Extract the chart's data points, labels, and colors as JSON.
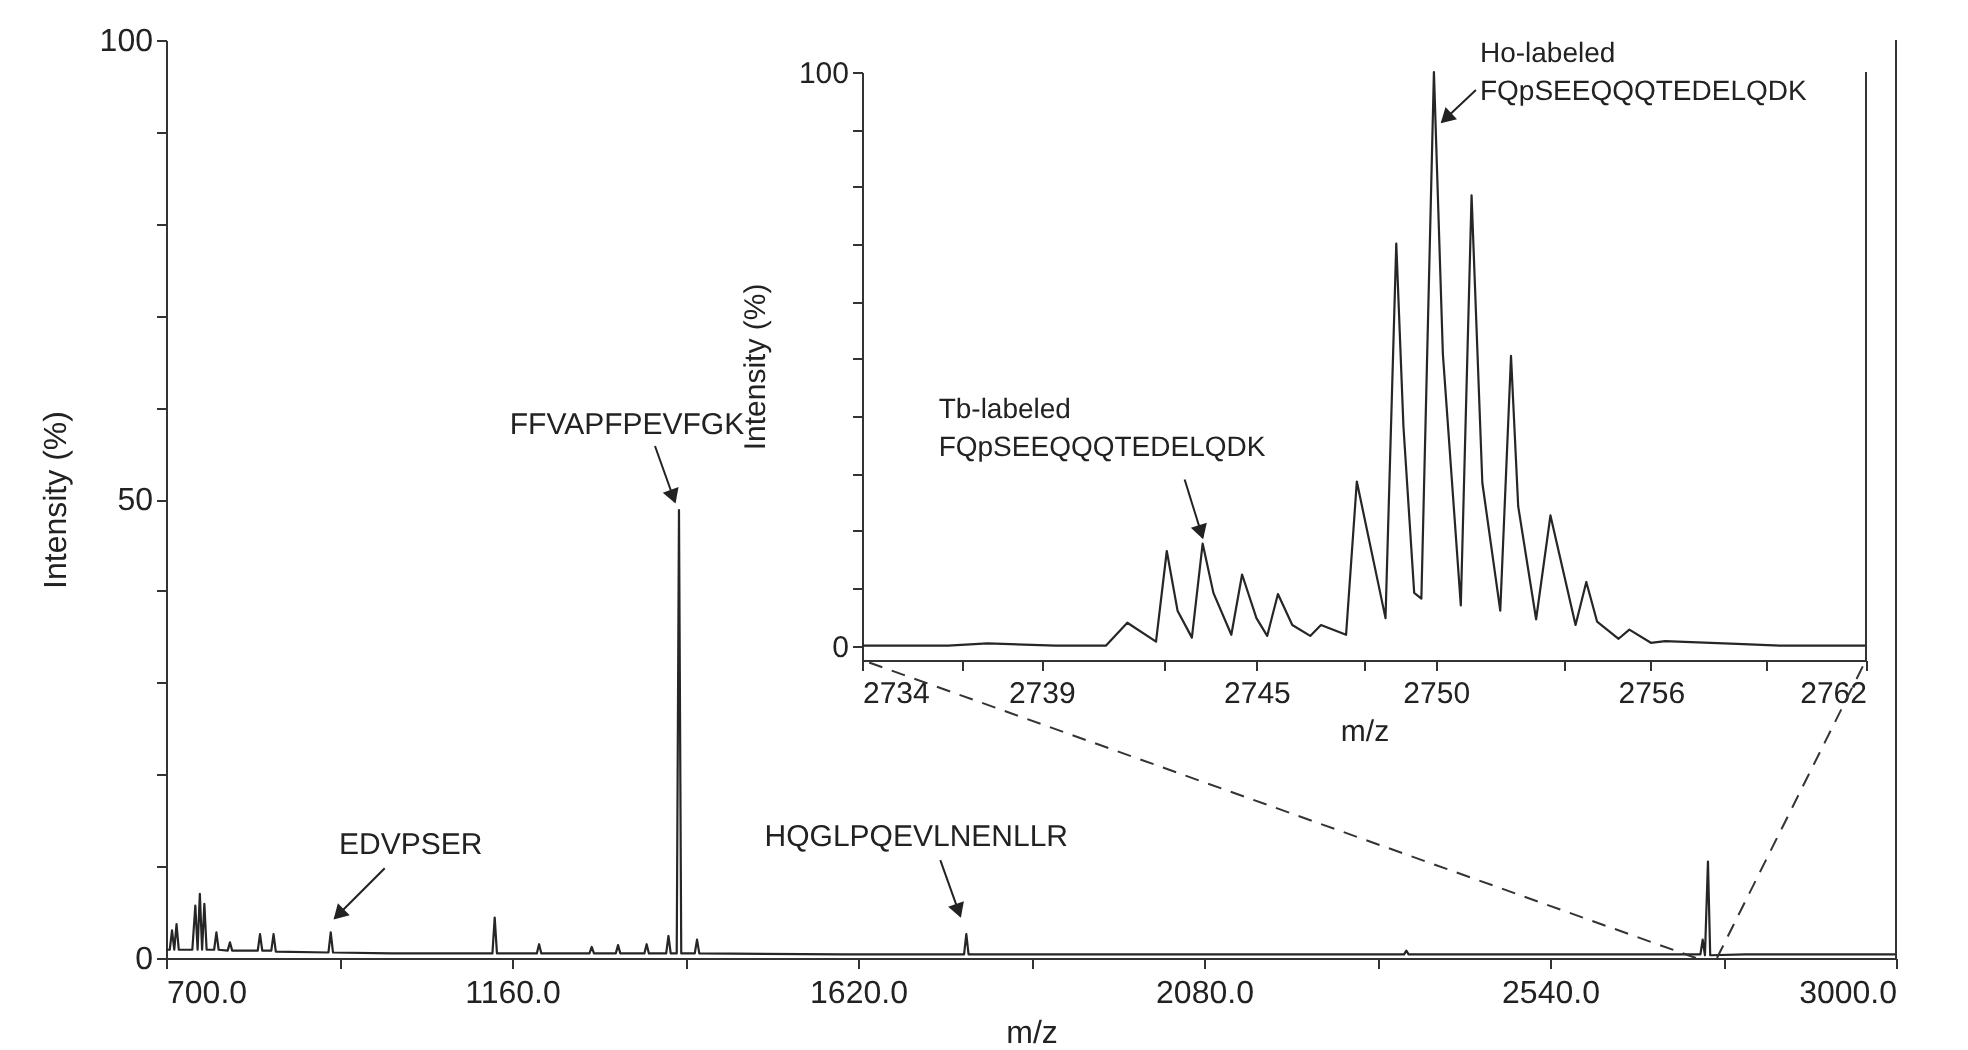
{
  "chart_data": [
    {
      "type": "line",
      "xlabel": "m/z",
      "ylabel": "Intensity (%)",
      "grid": false,
      "xlim": [
        700,
        3000
      ],
      "ylim": [
        0,
        100
      ],
      "xticks": [
        {
          "value": 700,
          "label": "700.0"
        },
        {
          "value": 930,
          "label": null
        },
        {
          "value": 1160,
          "label": "1160.0"
        },
        {
          "value": 1390,
          "label": null
        },
        {
          "value": 1620,
          "label": "1620.0"
        },
        {
          "value": 1850,
          "label": null
        },
        {
          "value": 2080,
          "label": "2080.0"
        },
        {
          "value": 2310,
          "label": null
        },
        {
          "value": 2540,
          "label": "2540.0"
        },
        {
          "value": 2770,
          "label": null
        },
        {
          "value": 3000,
          "label": "3000.0"
        }
      ],
      "yticks": [
        0,
        {
          "value": 10,
          "label": null
        },
        {
          "value": 20,
          "label": null
        },
        {
          "value": 30,
          "label": null
        },
        {
          "value": 40,
          "label": null
        },
        50,
        {
          "value": 60,
          "label": null
        },
        {
          "value": 70,
          "label": null
        },
        {
          "value": 80,
          "label": null
        },
        {
          "value": 90,
          "label": null
        },
        100
      ],
      "x": [
        700,
        705,
        708,
        711,
        714,
        717,
        735,
        739,
        742,
        745,
        748,
        751,
        754,
        764,
        767,
        770,
        782,
        785,
        788,
        822,
        825,
        828,
        840,
        843,
        846,
        916,
        919,
        922,
        1000,
        1134,
        1137,
        1140,
        1193,
        1196,
        1199,
        1263,
        1266,
        1269,
        1298,
        1301,
        1304,
        1336,
        1339,
        1342,
        1365,
        1368,
        1371,
        1379,
        1382,
        1385,
        1403,
        1406,
        1409,
        1600,
        1761,
        1764,
        1767,
        2000,
        2346,
        2349,
        2352,
        2600,
        2740,
        2743,
        2746,
        2750,
        2753,
        2800,
        3000
      ],
      "series": [
        {
          "color": "#262626",
          "values": [
            0.9,
            0.9,
            3.0,
            0.9,
            3.7,
            0.9,
            0.9,
            5.7,
            0.9,
            7.0,
            0.9,
            5.9,
            0.9,
            0.9,
            2.8,
            0.9,
            0.8,
            1.7,
            0.8,
            0.8,
            2.6,
            0.8,
            0.8,
            2.6,
            0.7,
            0.6,
            2.8,
            0.6,
            0.5,
            0.5,
            4.4,
            0.5,
            0.5,
            1.5,
            0.5,
            0.5,
            1.2,
            0.5,
            0.5,
            1.4,
            0.5,
            0.5,
            1.5,
            0.5,
            0.5,
            2.4,
            0.5,
            0.5,
            48.8,
            0.5,
            0.5,
            2.0,
            0.5,
            0.4,
            0.4,
            2.6,
            0.4,
            0.4,
            0.4,
            0.8,
            0.4,
            0.4,
            0.4,
            2.0,
            0.3,
            10.5,
            0.3,
            0.4,
            0.4
          ]
        }
      ],
      "annotations": [
        {
          "text": "FFVAPFPEVFGK",
          "x": 1382,
          "y": 48.8
        },
        {
          "text": "EDVPSER",
          "x": 919,
          "y": 2.8
        },
        {
          "text": "HQGLPQEVLNENLLR",
          "x": 1764,
          "y": 2.6
        }
      ]
    },
    {
      "type": "line",
      "xlabel": "m/z",
      "ylabel": "Intensity (%)",
      "grid": false,
      "xlim": [
        2734,
        2762
      ],
      "ylim": [
        -2.5,
        100
      ],
      "xticks": [
        2734,
        {
          "value": 2736.8,
          "label": null
        },
        2739,
        {
          "value": 2742.4,
          "label": null
        },
        2745,
        {
          "value": 2748,
          "label": null
        },
        2750,
        {
          "value": 2753.6,
          "label": null
        },
        2756,
        {
          "value": 2759.2,
          "label": null
        },
        2762
      ],
      "yticks": [
        0,
        {
          "value": 10,
          "label": null
        },
        {
          "value": 20,
          "label": null
        },
        {
          "value": 30,
          "label": null
        },
        {
          "value": 40,
          "label": null
        },
        {
          "value": 50,
          "label": null
        },
        {
          "value": 60,
          "label": null
        },
        {
          "value": 70,
          "label": null
        },
        {
          "value": 80,
          "label": null
        },
        {
          "value": 90,
          "label": null
        },
        100
      ],
      "x": [
        2734.0,
        2736.4,
        2737.5,
        2739.4,
        2740.8,
        2741.4,
        2742.2,
        2742.5,
        2742.8,
        2743.2,
        2743.5,
        2743.8,
        2744.3,
        2744.6,
        2745.0,
        2745.3,
        2745.6,
        2746.0,
        2746.5,
        2746.8,
        2747.5,
        2747.8,
        2748.6,
        2748.9,
        2749.1,
        2749.4,
        2749.6,
        2749.95,
        2750.2,
        2750.7,
        2751.0,
        2751.3,
        2751.8,
        2752.1,
        2752.3,
        2752.8,
        2753.2,
        2753.9,
        2754.2,
        2754.5,
        2755.1,
        2755.4,
        2756.0,
        2756.4,
        2758.4,
        2759.6,
        2762.0
      ],
      "series": [
        {
          "color": "#262626",
          "values": [
            0,
            0,
            0.4,
            0,
            0,
            4.0,
            0.7,
            16.5,
            6.1,
            1.4,
            17.8,
            9.2,
            1.9,
            12.4,
            4.8,
            1.7,
            9.0,
            3.6,
            1.7,
            3.6,
            1.9,
            28.6,
            4.8,
            70.1,
            38.2,
            9.2,
            8.2,
            100,
            50.8,
            7.0,
            78.5,
            28.4,
            6.1,
            50.5,
            24.3,
            4.6,
            22.7,
            3.6,
            11.1,
            4.2,
            1.2,
            2.8,
            0.5,
            0.8,
            0.3,
            0,
            0
          ]
        }
      ],
      "annotations": [
        {
          "text": "Ho-labeled\nFQpSEEQQQTEDELQDK",
          "x": 2749.95,
          "y": 100
        },
        {
          "text": "Tb-labeled\nFQpSEEQQQTEDELQDK",
          "x": 2743.5,
          "y": 17.8
        }
      ]
    }
  ]
}
